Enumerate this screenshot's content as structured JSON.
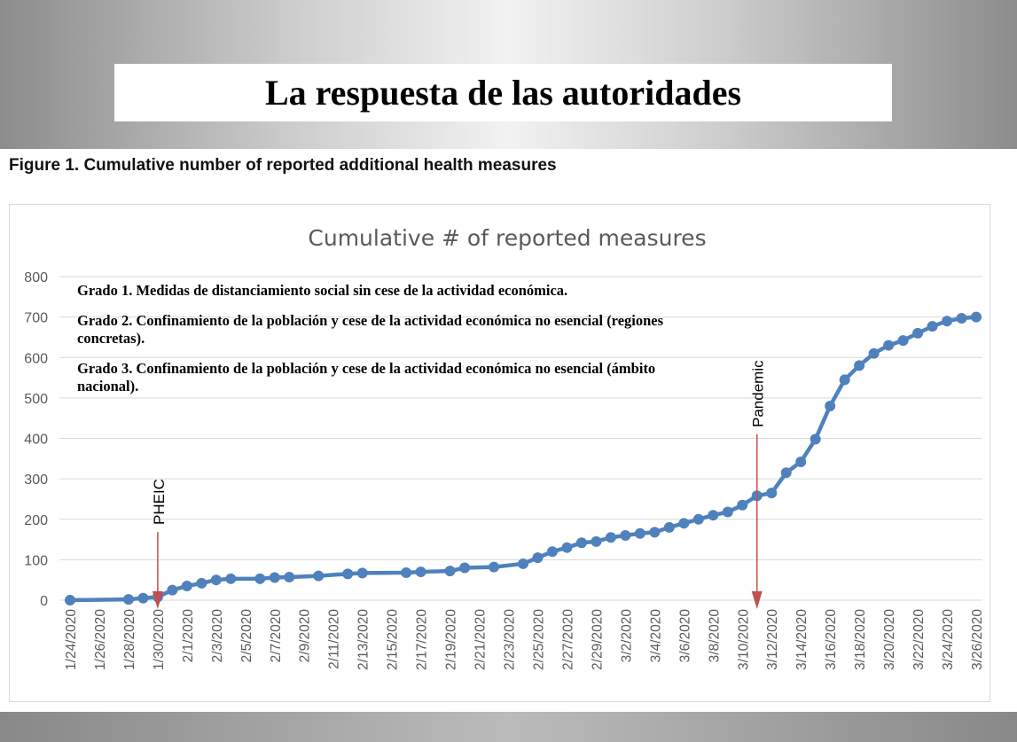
{
  "slide": {
    "title": "La respuesta de las autoridades",
    "figure_caption": "Figure 1. Cumulative number of reported additional health measures"
  },
  "notes": [
    "Grado 1. Medidas de distanciamiento social sin cese de la actividad económica.",
    "Grado 2. Confinamiento de la población y cese de la actividad económica no esencial (regiones concretas).",
    "Grado 3. Confinamiento de la población y cese de la actividad económica no esencial (ámbito nacional)."
  ],
  "colors": {
    "series": "#4f81bd",
    "annotation": "#c0504d",
    "grid": "#d9d9d9"
  },
  "chart_data": {
    "type": "line",
    "title": "Cumulative # of reported measures",
    "xlabel": "",
    "ylabel": "",
    "ylim": [
      0,
      800
    ],
    "yticks": [
      0,
      100,
      200,
      300,
      400,
      500,
      600,
      700,
      800
    ],
    "grid": true,
    "x_start": "1/24/2020",
    "x_days": 62,
    "xtick_labels": [
      "1/24/2020",
      "1/26/2020",
      "1/28/2020",
      "1/30/2020",
      "2/1/2020",
      "2/3/2020",
      "2/5/2020",
      "2/7/2020",
      "2/9/2020",
      "2/11/2020",
      "2/13/2020",
      "2/15/2020",
      "2/17/2020",
      "2/19/2020",
      "2/21/2020",
      "2/23/2020",
      "2/25/2020",
      "2/27/2020",
      "2/29/2020",
      "3/2/2020",
      "3/4/2020",
      "3/6/2020",
      "3/8/2020",
      "3/10/2020",
      "3/12/2020",
      "3/14/2020",
      "3/16/2020",
      "3/18/2020",
      "3/20/2020",
      "3/22/2020",
      "3/24/2020",
      "3/26/2020"
    ],
    "series": [
      {
        "name": "Cumulative # of reported measures",
        "day": [
          0,
          4,
          5,
          6,
          7,
          8,
          9,
          10,
          11,
          13,
          14,
          15,
          17,
          19,
          20,
          23,
          24,
          26,
          27,
          29,
          31,
          32,
          33,
          34,
          35,
          36,
          37,
          38,
          39,
          40,
          41,
          42,
          43,
          44,
          45,
          46,
          47,
          48,
          49,
          50,
          51,
          52,
          53,
          54,
          55,
          56,
          57,
          58,
          59,
          60,
          61,
          62
        ],
        "values": [
          0,
          2,
          5,
          8,
          25,
          35,
          42,
          50,
          53,
          53,
          56,
          57,
          60,
          65,
          67,
          68,
          70,
          72,
          80,
          82,
          90,
          105,
          120,
          130,
          142,
          145,
          155,
          160,
          165,
          168,
          180,
          190,
          200,
          210,
          218,
          235,
          258,
          265,
          315,
          342,
          398,
          480,
          545,
          580,
          610,
          630,
          642,
          660,
          677,
          690,
          697,
          700
        ]
      }
    ],
    "annotations": [
      {
        "label": "PHEIC",
        "day": 6
      },
      {
        "label": "Pandemic",
        "day": 47
      }
    ]
  }
}
